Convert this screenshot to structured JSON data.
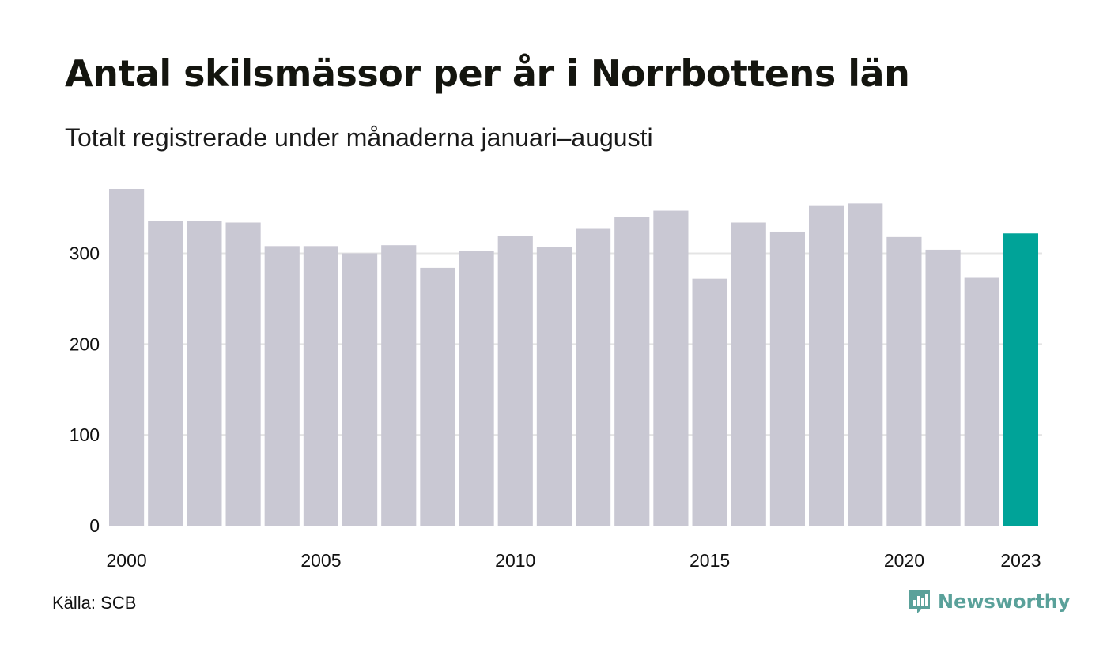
{
  "title": "Antal skilsmässor per år i Norrbottens län",
  "subtitle": "Totalt registrerade under månaderna januari–augusti",
  "source": "Källa: SCB",
  "brand": {
    "name": "Newsworthy",
    "icon": "newsworthy-logo-icon"
  },
  "colors": {
    "bar": "#c9c8d3",
    "highlight": "#00a398",
    "grid": "#e4e4e4",
    "text": "#111111",
    "brand": "#5aa19a"
  },
  "chart_data": {
    "type": "bar",
    "categories": [
      "2000",
      "2001",
      "2002",
      "2003",
      "2004",
      "2005",
      "2006",
      "2007",
      "2008",
      "2009",
      "2010",
      "2011",
      "2012",
      "2013",
      "2014",
      "2015",
      "2016",
      "2017",
      "2018",
      "2019",
      "2020",
      "2021",
      "2022",
      "2023"
    ],
    "values": [
      371,
      336,
      336,
      334,
      308,
      308,
      300,
      309,
      284,
      303,
      319,
      307,
      327,
      340,
      347,
      272,
      334,
      324,
      353,
      355,
      318,
      304,
      273,
      322
    ],
    "highlight": "2023",
    "xtick_labels": [
      "2000",
      "2005",
      "2010",
      "2015",
      "2020",
      "2023"
    ],
    "yticks": [
      0,
      100,
      200,
      300
    ],
    "ylim": [
      0,
      371
    ],
    "grid": true,
    "xlabel": "",
    "ylabel": ""
  }
}
